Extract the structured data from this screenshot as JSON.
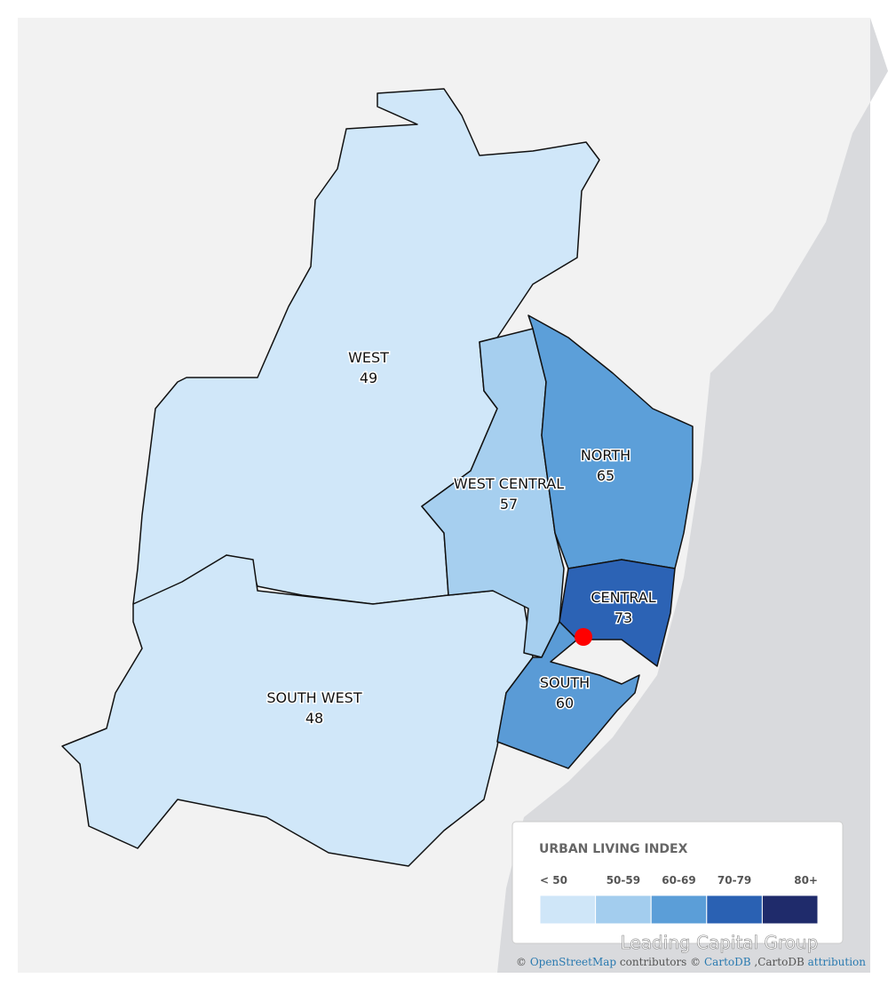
{
  "regions": [
    {
      "name": "WEST",
      "value": 49,
      "color": "#d0e7f9"
    },
    {
      "name": "WEST CENTRAL",
      "value": 57,
      "color": "#a6cfef"
    },
    {
      "name": "NORTH",
      "value": 65,
      "color": "#5c9fd9"
    },
    {
      "name": "CENTRAL",
      "value": 73,
      "color": "#2c63b5"
    },
    {
      "name": "SOUTH",
      "value": 60,
      "color": "#5a9bd6"
    },
    {
      "name": "SOUTH WEST",
      "value": 48,
      "color": "#d0e7f9"
    }
  ],
  "legend": {
    "title": "URBAN LIVING INDEX",
    "classes": [
      {
        "label": "< 50",
        "color": "#cfe6f8"
      },
      {
        "label": "50-59",
        "color": "#a3cdee"
      },
      {
        "label": "60-69",
        "color": "#5b9ed8"
      },
      {
        "label": "70-79",
        "color": "#2a61b3"
      },
      {
        "label": "80+",
        "color": "#1f2b6b"
      }
    ]
  },
  "attribution": [
    "©",
    "OpenStreetMap",
    "contributors ©",
    "CartoDB",
    ",CartoDB",
    "attribution"
  ],
  "watermark": "Leading Capital Group"
}
